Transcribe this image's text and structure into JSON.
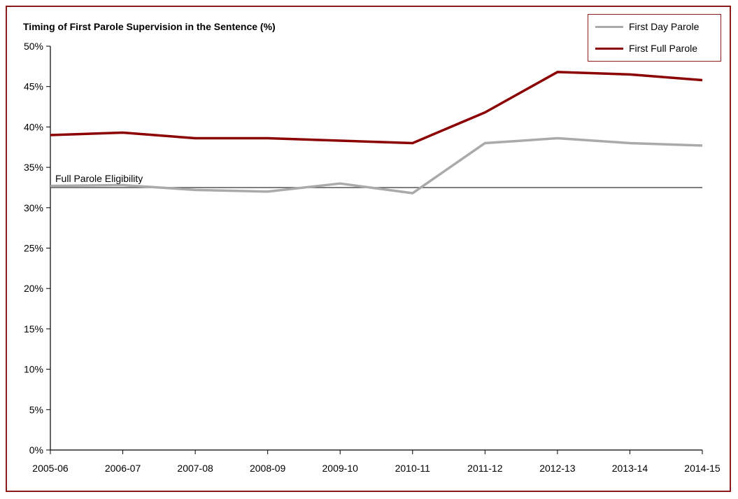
{
  "chart_data": {
    "type": "line",
    "title": "Timing of First Parole Supervision in the Sentence (%)",
    "xlabel": "",
    "ylabel": "",
    "categories": [
      "2005-06",
      "2006-07",
      "2007-08",
      "2008-09",
      "2009-10",
      "2010-11",
      "2011-12",
      "2012-13",
      "2013-14",
      "2014-15"
    ],
    "ylim": [
      0,
      50
    ],
    "yticks": [
      "0%",
      "5%",
      "10%",
      "15%",
      "20%",
      "25%",
      "30%",
      "35%",
      "40%",
      "45%",
      "50%"
    ],
    "grid": false,
    "legend_position": "top-right",
    "series": [
      {
        "name": "First Day Parole",
        "color": "#aaaaaa",
        "values": [
          32.7,
          32.8,
          32.2,
          32.0,
          33.0,
          31.8,
          38.0,
          38.6,
          38.0,
          37.7
        ]
      },
      {
        "name": "First Full Parole",
        "color": "#8b0000",
        "values": [
          39.0,
          39.3,
          38.6,
          38.6,
          38.3,
          38.0,
          41.8,
          46.8,
          46.5,
          45.8
        ]
      }
    ],
    "reference_line": {
      "label": "Full Parole Eligibility",
      "value": 32.5,
      "color": "#555555"
    }
  }
}
